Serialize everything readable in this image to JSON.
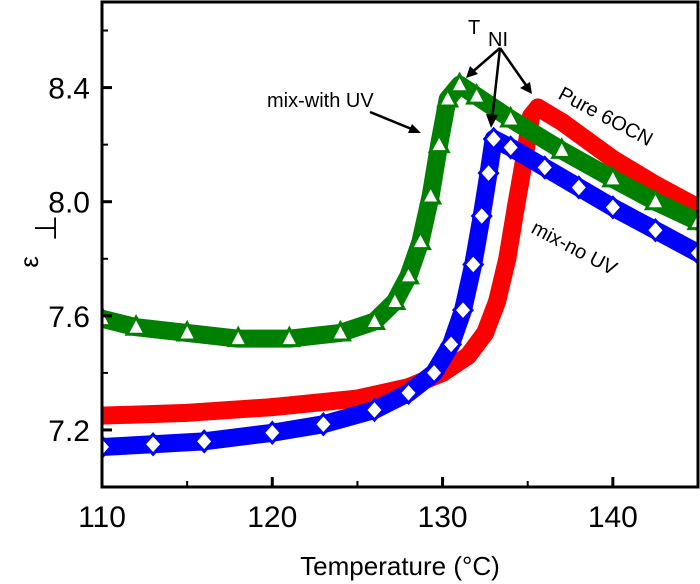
{
  "chart_data": {
    "type": "scatter",
    "xlabel": "Temperature (°C)",
    "xlabel_parts": {
      "prefix": "Temperature (",
      "sup": "o",
      "suffix": "C)"
    },
    "ylabel": "ε⊥",
    "ylabel_parts": {
      "symbol": "ε",
      "sub": "⊥"
    },
    "xlim": [
      110,
      145
    ],
    "ylim": [
      7.0,
      8.7
    ],
    "xticks": [
      110,
      120,
      130,
      140
    ],
    "xtick_labels": [
      "110",
      "120",
      "130",
      "140"
    ],
    "yticks": [
      7.2,
      7.6,
      8.0,
      8.4
    ],
    "ytick_labels": [
      "7.2",
      "7.6",
      "8.0",
      "8.4"
    ],
    "grid": false,
    "annotations": {
      "tni_main": "T",
      "tni_sub": "NI",
      "mix_with_uv": "mix-with UV",
      "pure_6ocn": "Pure 6OCN",
      "mix_no_uv": "mix-no UV"
    },
    "series": [
      {
        "name": "Pure 6OCN",
        "color": "#ff0000",
        "marker": "circle",
        "x": [
          110,
          115,
          120,
          125,
          128,
          130,
          131.5,
          132.5,
          133.2,
          133.8,
          134.3,
          134.8,
          135.2,
          135.6,
          137,
          140,
          142.5,
          145
        ],
        "y": [
          7.25,
          7.26,
          7.28,
          7.31,
          7.35,
          7.4,
          7.46,
          7.54,
          7.65,
          7.8,
          7.98,
          8.15,
          8.3,
          8.33,
          8.28,
          8.15,
          8.06,
          7.98
        ]
      },
      {
        "name": "mix-with UV",
        "color": "#008000",
        "marker": "triangle",
        "x": [
          110,
          112,
          115,
          118,
          121,
          124,
          126,
          127.2,
          128,
          128.7,
          129.3,
          129.8,
          130.3,
          131,
          132,
          134,
          137,
          140,
          142.5,
          145
        ],
        "y": [
          7.59,
          7.56,
          7.54,
          7.52,
          7.52,
          7.54,
          7.58,
          7.65,
          7.74,
          7.86,
          8.02,
          8.2,
          8.36,
          8.41,
          8.37,
          8.29,
          8.18,
          8.08,
          8.0,
          7.93
        ]
      },
      {
        "name": "mix-no UV",
        "color": "#0000ff",
        "marker": "diamond",
        "x": [
          110,
          113,
          116,
          120,
          123,
          126,
          128,
          129.5,
          130.5,
          131.2,
          131.8,
          132.3,
          132.7,
          133,
          134,
          136,
          138,
          140,
          142.5,
          145
        ],
        "y": [
          7.14,
          7.15,
          7.16,
          7.19,
          7.22,
          7.27,
          7.33,
          7.4,
          7.5,
          7.62,
          7.78,
          7.95,
          8.1,
          8.22,
          8.19,
          8.12,
          8.05,
          7.98,
          7.9,
          7.82
        ]
      }
    ]
  }
}
